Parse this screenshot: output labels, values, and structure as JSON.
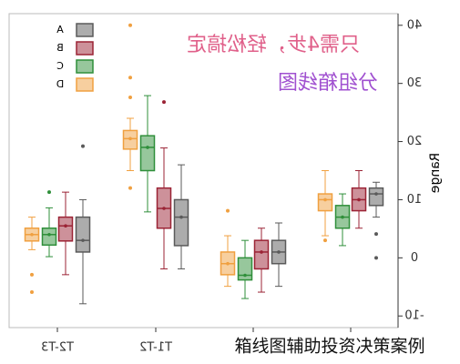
{
  "chart_data": {
    "type": "box",
    "categories": [
      "T2-T3",
      "T1-T2",
      null,
      null
    ],
    "y_label": "Range",
    "ylim": [
      -12,
      42
    ],
    "yticks": [
      -10,
      0,
      10,
      20,
      30,
      40
    ],
    "mirrored": true,
    "annotations": [
      "只需4步，轻松搞定",
      "分组箱线图",
      "箱线图辅助投资决策案例"
    ],
    "series": [
      {
        "name": "A",
        "color": "#5a5a5a",
        "values": [
          {
            "min": -7.9,
            "q1": 1,
            "median": 3,
            "q3": 7,
            "max": 10,
            "outliers": [
              19.2
            ]
          },
          {
            "min": -1.9,
            "q1": 2.1,
            "median": 7,
            "q3": 10,
            "max": 16,
            "outliers": []
          },
          {
            "min": -4.9,
            "q1": -1,
            "median": 1,
            "q3": 3,
            "max": 6,
            "outliers": []
          },
          {
            "min": 7,
            "q1": 9,
            "median": 11,
            "q3": 12,
            "max": 13,
            "outliers": [
              4.1,
              0
            ]
          }
        ]
      },
      {
        "name": "B",
        "color": "#9b2335",
        "values": [
          {
            "min": -2.9,
            "q1": 2.9,
            "median": 5.5,
            "q3": 7,
            "max": 11.3,
            "outliers": []
          },
          {
            "min": -1.9,
            "q1": 5.1,
            "median": 8.5,
            "q3": 12,
            "max": 18.9,
            "outliers": [
              26.8
            ]
          },
          {
            "min": -5.9,
            "q1": -1.9,
            "median": 1,
            "q3": 3,
            "max": 5.1,
            "outliers": []
          },
          {
            "min": 5.1,
            "q1": 8.1,
            "median": 10,
            "q3": 12,
            "max": 15,
            "outliers": []
          }
        ]
      },
      {
        "name": "C",
        "color": "#2f8f3a",
        "values": [
          {
            "min": 0.2,
            "q1": 2.2,
            "median": 4,
            "q3": 5.1,
            "max": 8.6,
            "outliers": [
              11.3
            ]
          },
          {
            "min": 7.9,
            "q1": 15,
            "median": 19,
            "q3": 21,
            "max": 27.9,
            "outliers": []
          },
          {
            "min": -7,
            "q1": -3.8,
            "median": -3,
            "q3": 0,
            "max": 3,
            "outliers": []
          },
          {
            "min": 2.1,
            "q1": 5.1,
            "median": 7,
            "q3": 9,
            "max": 11,
            "outliers": []
          }
        ]
      },
      {
        "name": "D",
        "color": "#f0a040",
        "values": [
          {
            "min": 1.4,
            "q1": 2.9,
            "median": 4,
            "q3": 5.1,
            "max": 7,
            "outliers": [
              -2.9,
              -5.9
            ]
          },
          {
            "min": 15,
            "q1": 18.7,
            "median": 20.5,
            "q3": 21.9,
            "max": 24,
            "outliers": [
              40,
              31,
              27.6,
              12
            ]
          },
          {
            "min": -4.9,
            "q1": -2.9,
            "median": -1,
            "q3": 1,
            "max": 3.8,
            "outliers": [
              8.1
            ]
          },
          {
            "min": 3.8,
            "q1": 8.1,
            "median": 10,
            "q3": 11,
            "max": 15,
            "outliers": [
              3
            ]
          }
        ]
      }
    ]
  }
}
